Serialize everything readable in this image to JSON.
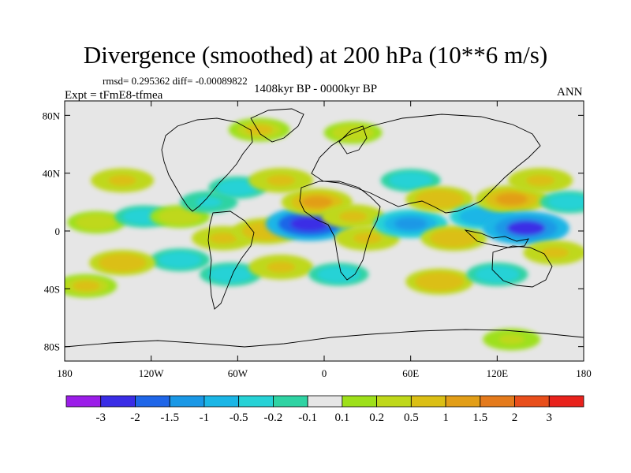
{
  "chart_data": {
    "type": "heatmap",
    "title": "Divergence (smoothed) at 200 hPa (10**6 m/s)",
    "stats": "rmsd= 0.295362 diff= -0.00089822",
    "experiment": "Expt = tFmE8-tfmea",
    "period": "1408kyr BP - 0000kyr BP",
    "season": "ANN",
    "x_ticks": [
      "180",
      "120W",
      "60W",
      "0",
      "60E",
      "120E",
      "180"
    ],
    "x_tick_values": [
      -180,
      -120,
      -60,
      0,
      60,
      120,
      180
    ],
    "y_ticks": [
      "80N",
      "40N",
      "0",
      "40S",
      "80S"
    ],
    "y_tick_values": [
      80,
      40,
      0,
      -40,
      -80
    ],
    "xlim": [
      -180,
      180
    ],
    "ylim": [
      -90,
      90
    ],
    "colorbar": {
      "labels": [
        "-3",
        "-2",
        "-1.5",
        "-1",
        "-0.5",
        "-0.2",
        "-0.1",
        "0.1",
        "0.2",
        "0.5",
        "1",
        "1.5",
        "2",
        "3"
      ],
      "colors": [
        "#9b1de8",
        "#3a2de6",
        "#1f66e8",
        "#1a98e6",
        "#1bb6e6",
        "#27d2d6",
        "#2fd3a3",
        "#e6e6e6",
        "#9ee01a",
        "#bfd81a",
        "#dbbf15",
        "#e29e18",
        "#e47a1c",
        "#e84e1b",
        "#e8221c"
      ]
    },
    "anomaly_regions": [
      {
        "lon": -158,
        "lat": 6,
        "value": 0.3
      },
      {
        "lon": -140,
        "lat": 35,
        "value": 0.6
      },
      {
        "lon": -125,
        "lat": 10,
        "value": -0.3
      },
      {
        "lon": -100,
        "lat": 10,
        "value": 0.4
      },
      {
        "lon": -100,
        "lat": -20,
        "value": -0.4
      },
      {
        "lon": -140,
        "lat": -22,
        "value": 0.8
      },
      {
        "lon": -80,
        "lat": 20,
        "value": -0.25
      },
      {
        "lon": -70,
        "lat": -5,
        "value": 0.6
      },
      {
        "lon": -60,
        "lat": 30,
        "value": -0.3
      },
      {
        "lon": -65,
        "lat": -30,
        "value": -0.5
      },
      {
        "lon": -40,
        "lat": 0,
        "value": 0.9
      },
      {
        "lon": -30,
        "lat": -25,
        "value": 0.7
      },
      {
        "lon": -30,
        "lat": 35,
        "value": 0.7
      },
      {
        "lon": -10,
        "lat": 5,
        "value": -2.2
      },
      {
        "lon": -5,
        "lat": 20,
        "value": 1.1
      },
      {
        "lon": -45,
        "lat": 70,
        "value": 0.5
      },
      {
        "lon": 20,
        "lat": 68,
        "value": 0.3
      },
      {
        "lon": 20,
        "lat": 10,
        "value": 0.6
      },
      {
        "lon": 30,
        "lat": -5,
        "value": 0.7
      },
      {
        "lon": 10,
        "lat": -30,
        "value": -0.4
      },
      {
        "lon": 60,
        "lat": 35,
        "value": -0.4
      },
      {
        "lon": 60,
        "lat": 5,
        "value": -1.3
      },
      {
        "lon": 80,
        "lat": 22,
        "value": 0.9
      },
      {
        "lon": 90,
        "lat": -5,
        "value": 0.8
      },
      {
        "lon": 80,
        "lat": -35,
        "value": 0.9
      },
      {
        "lon": 110,
        "lat": 10,
        "value": -0.8
      },
      {
        "lon": 130,
        "lat": 22,
        "value": 1.2
      },
      {
        "lon": 140,
        "lat": 2,
        "value": -2.1
      },
      {
        "lon": 150,
        "lat": 35,
        "value": 0.7
      },
      {
        "lon": 120,
        "lat": -30,
        "value": -0.5
      },
      {
        "lon": 160,
        "lat": -15,
        "value": 0.6
      },
      {
        "lon": 170,
        "lat": 20,
        "value": -0.3
      },
      {
        "lon": -165,
        "lat": -38,
        "value": 0.5
      },
      {
        "lon": 130,
        "lat": -75,
        "value": 0.25
      }
    ]
  }
}
